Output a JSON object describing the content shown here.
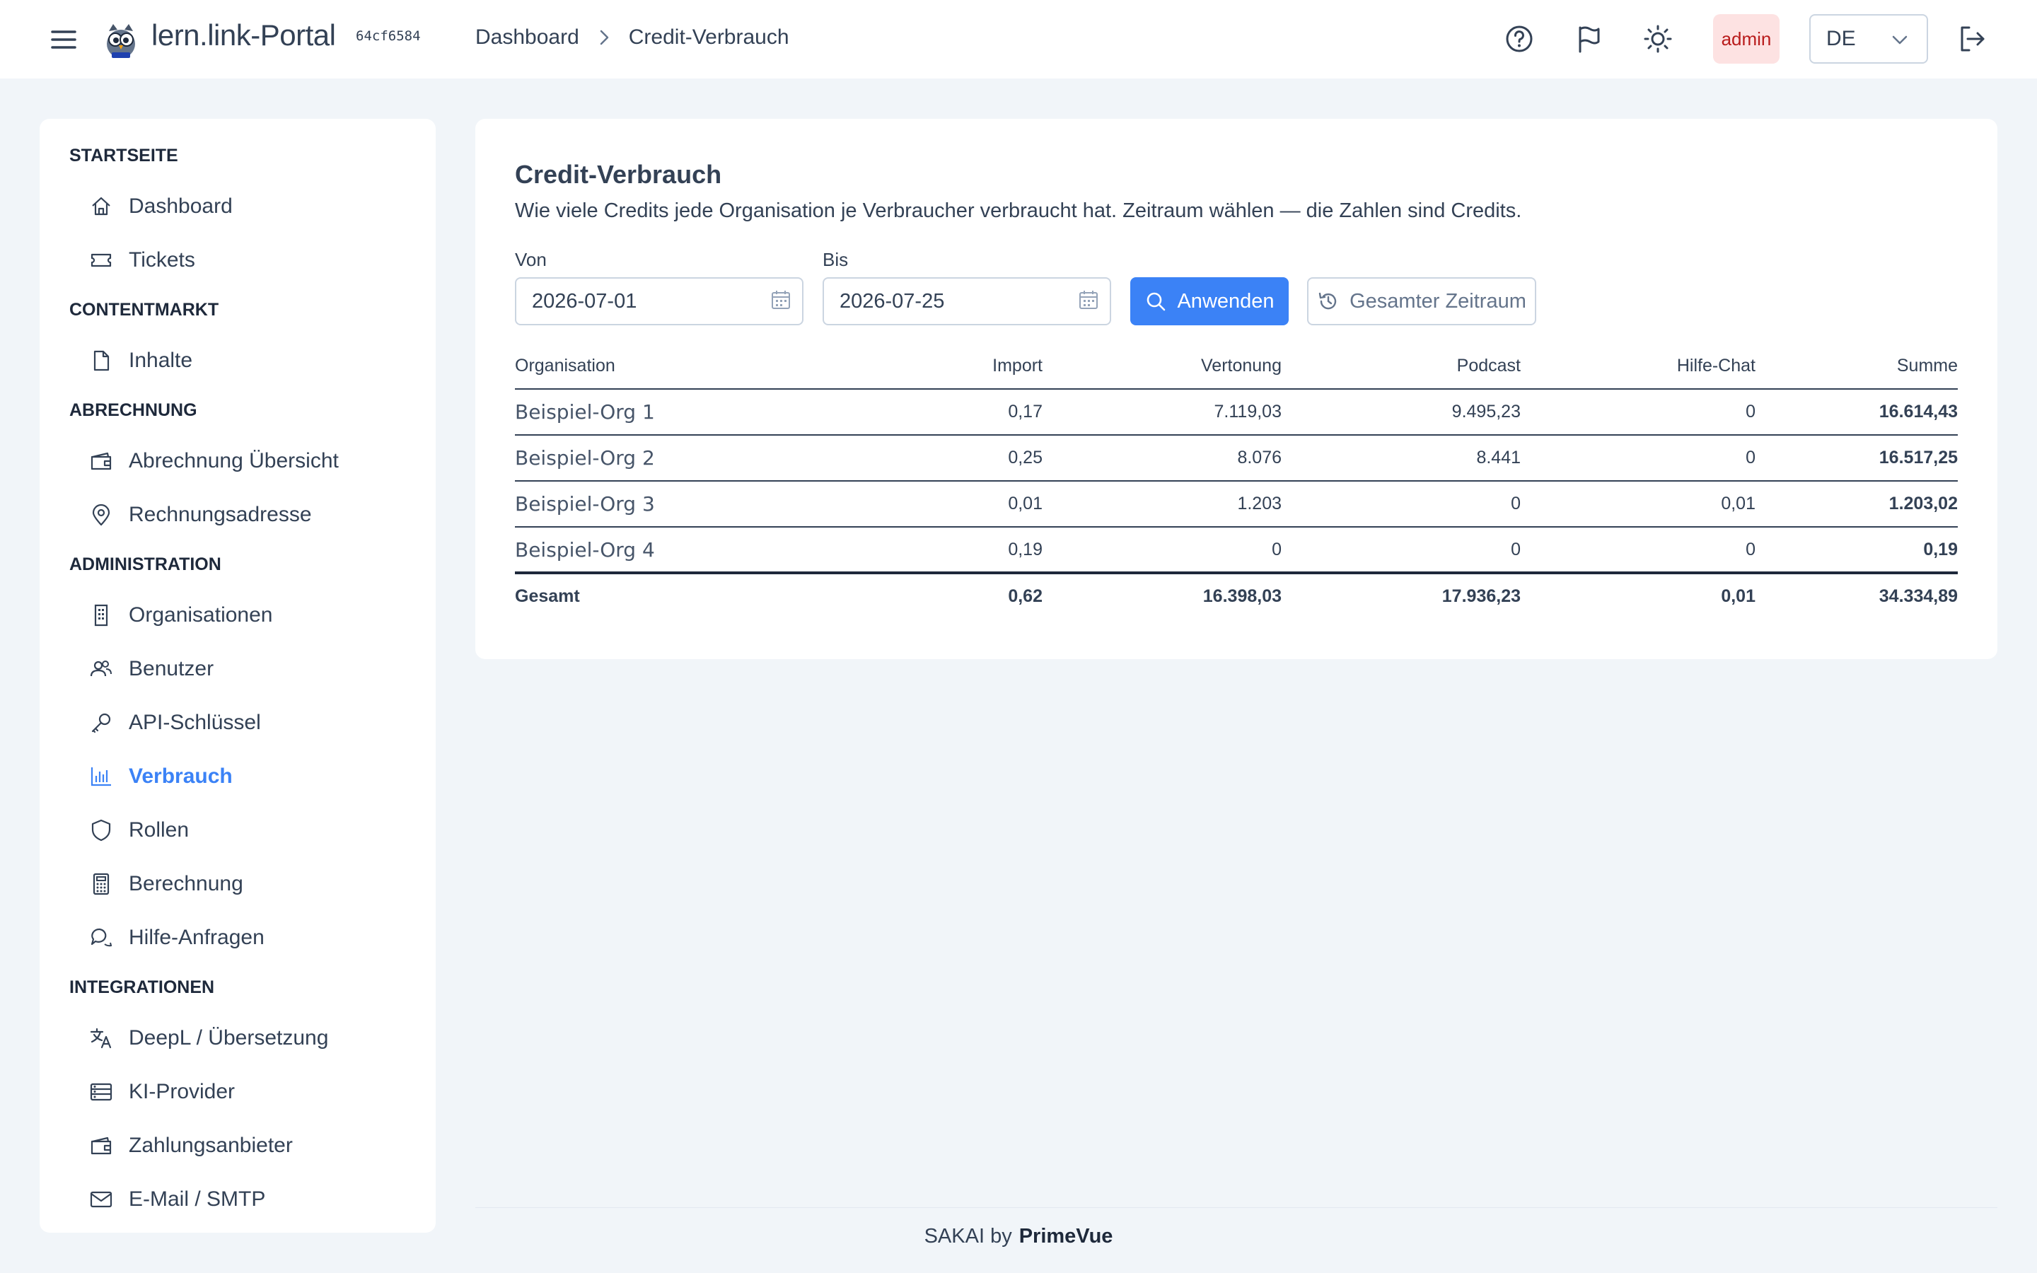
{
  "header": {
    "app_title": "lern.link-Portal",
    "version": "64cf6584",
    "breadcrumb": [
      "Dashboard",
      "Credit-Verbrauch"
    ],
    "role_badge": "admin",
    "language": "DE"
  },
  "sidebar": {
    "sections": [
      {
        "title": "STARTSEITE",
        "items": [
          {
            "label": "Dashboard",
            "icon": "home-icon"
          },
          {
            "label": "Tickets",
            "icon": "ticket-icon"
          }
        ]
      },
      {
        "title": "CONTENTMARKT",
        "items": [
          {
            "label": "Inhalte",
            "icon": "file-icon"
          }
        ]
      },
      {
        "title": "ABRECHNUNG",
        "items": [
          {
            "label": "Abrechnung Übersicht",
            "icon": "wallet-icon"
          },
          {
            "label": "Rechnungsadresse",
            "icon": "map-marker-icon"
          }
        ]
      },
      {
        "title": "ADMINISTRATION",
        "items": [
          {
            "label": "Organisationen",
            "icon": "building-icon"
          },
          {
            "label": "Benutzer",
            "icon": "users-icon"
          },
          {
            "label": "API-Schlüssel",
            "icon": "key-icon"
          },
          {
            "label": "Verbrauch",
            "icon": "chart-bar-icon",
            "active": true
          },
          {
            "label": "Rollen",
            "icon": "shield-icon"
          },
          {
            "label": "Berechnung",
            "icon": "calculator-icon"
          },
          {
            "label": "Hilfe-Anfragen",
            "icon": "comments-icon"
          }
        ]
      },
      {
        "title": "INTEGRATIONEN",
        "items": [
          {
            "label": "DeepL / Übersetzung",
            "icon": "language-icon"
          },
          {
            "label": "KI-Provider",
            "icon": "server-icon"
          },
          {
            "label": "Zahlungsanbieter",
            "icon": "wallet-icon"
          },
          {
            "label": "E-Mail / SMTP",
            "icon": "envelope-icon"
          }
        ]
      }
    ]
  },
  "main": {
    "title": "Credit-Verbrauch",
    "description": "Wie viele Credits jede Organisation je Verbraucher verbraucht hat. Zeitraum wählen — die Zahlen sind Credits.",
    "from_label": "Von",
    "from_value": "2026-07-01",
    "to_label": "Bis",
    "to_value": "2026-07-25",
    "apply_label": "Anwenden",
    "all_time_label": "Gesamter Zeitraum",
    "table": {
      "columns": [
        "Organisation",
        "Import",
        "Vertonung",
        "Podcast",
        "Hilfe-Chat",
        "Summe"
      ],
      "rows": [
        [
          "Beispiel-Org 1",
          "0,17",
          "7.119,03",
          "9.495,23",
          "0",
          "16.614,43"
        ],
        [
          "Beispiel-Org 2",
          "0,25",
          "8.076",
          "8.441",
          "0",
          "16.517,25"
        ],
        [
          "Beispiel-Org 3",
          "0,01",
          "1.203",
          "0",
          "0,01",
          "1.203,02"
        ],
        [
          "Beispiel-Org 4",
          "0,19",
          "0",
          "0",
          "0",
          "0,19"
        ]
      ],
      "total": [
        "Gesamt",
        "0,62",
        "16.398,03",
        "17.936,23",
        "0,01",
        "34.334,89"
      ]
    }
  },
  "footer": {
    "text": "SAKAI by",
    "brand": "PrimeVue"
  },
  "colors": {
    "accent": "#3b82f6",
    "badge_bg": "#fde2e2",
    "badge_text": "#b91c1c"
  }
}
